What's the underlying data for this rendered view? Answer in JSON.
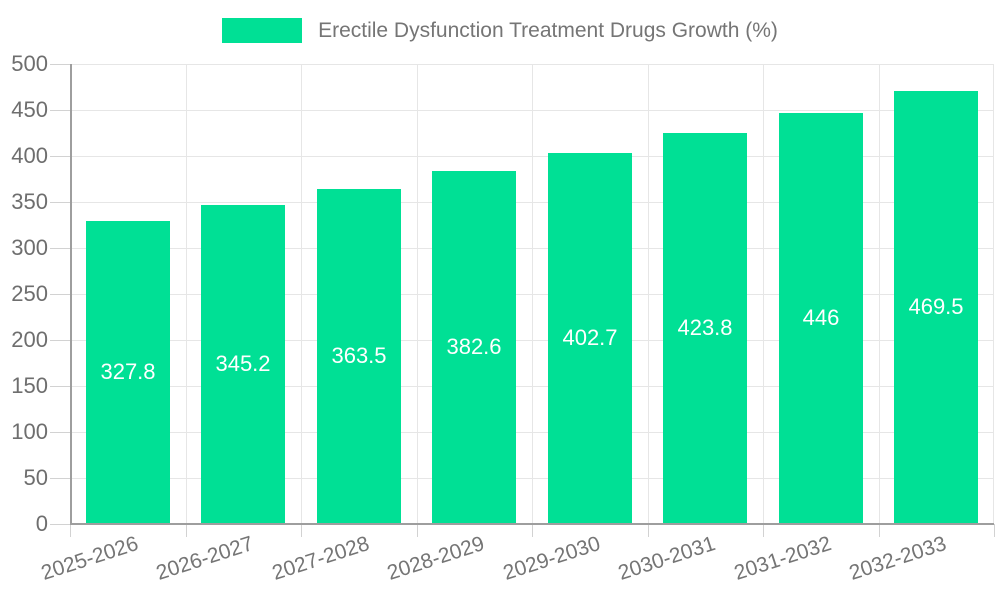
{
  "chart_data": {
    "type": "bar",
    "title": "",
    "legend_entries": [
      "Erectile Dysfunction Treatment Drugs Growth (%)"
    ],
    "legend_position": "top",
    "categories": [
      "2025-2026",
      "2026-2027",
      "2027-2028",
      "2028-2029",
      "2029-2030",
      "2030-2031",
      "2031-2032",
      "2032-2033"
    ],
    "values": [
      327.8,
      345.2,
      363.5,
      382.6,
      402.7,
      423.8,
      446,
      469.5
    ],
    "value_labels_shown": true,
    "xlabel": "",
    "ylabel": "",
    "ylim": [
      0,
      500
    ],
    "ytick_step": 50,
    "grid": true,
    "colors": {
      "bar": "#00e095",
      "value_label": "#ffffff",
      "legend_text": "#757575",
      "tick_label": "#6e6e6e",
      "x_label": "#757575",
      "axis": "#9e9e9e",
      "gridline": "#e6e6e6",
      "tick_mark": "#d2d2d2",
      "background": "#ffffff"
    }
  }
}
